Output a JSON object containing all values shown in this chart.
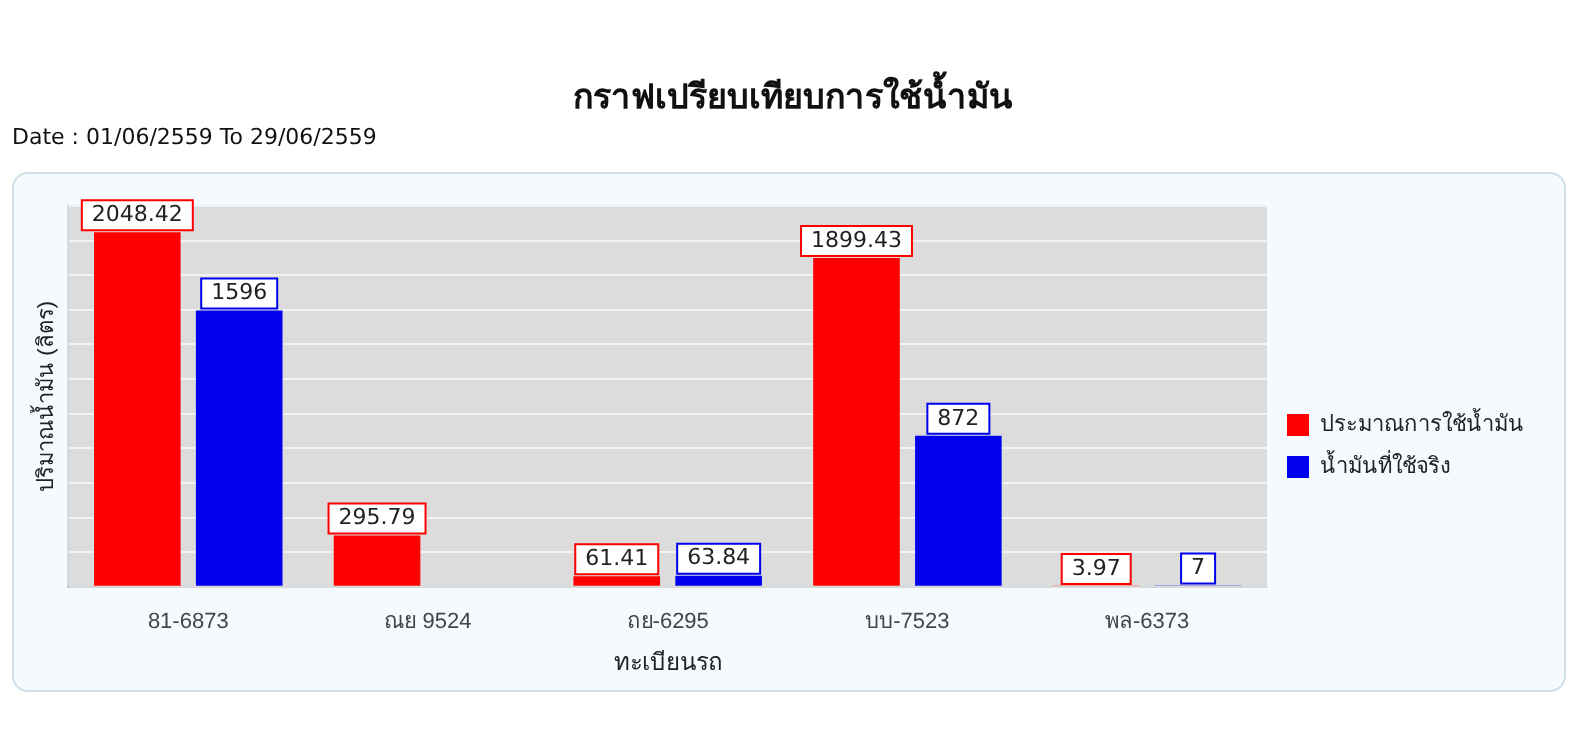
{
  "chart_data": {
    "type": "bar",
    "title": "กราฟเปรียบเทียบการใช้น้ำมัน",
    "subtitle": "Date : 01/06/2559 To 29/06/2559",
    "xlabel": "ทะเบียนรถ",
    "ylabel": "ปริมาณน้ำมัน (ลิตร)",
    "categories": [
      "81-6873",
      "ณย 9524",
      "ถย-6295",
      "บบ-7523",
      "พล-6373"
    ],
    "series": [
      {
        "name": "ประมาณการใช้น้ำมัน",
        "color": "#ff0000",
        "values": [
          2048.42,
          295.79,
          61.41,
          1899.43,
          3.97
        ]
      },
      {
        "name": "น้ำมันที่ใช้จริง",
        "color": "#0000ee",
        "values": [
          1596,
          null,
          63.84,
          872,
          7
        ]
      }
    ],
    "data_labels": true,
    "grid": "y",
    "legend": "right",
    "tick_labels": "x"
  }
}
